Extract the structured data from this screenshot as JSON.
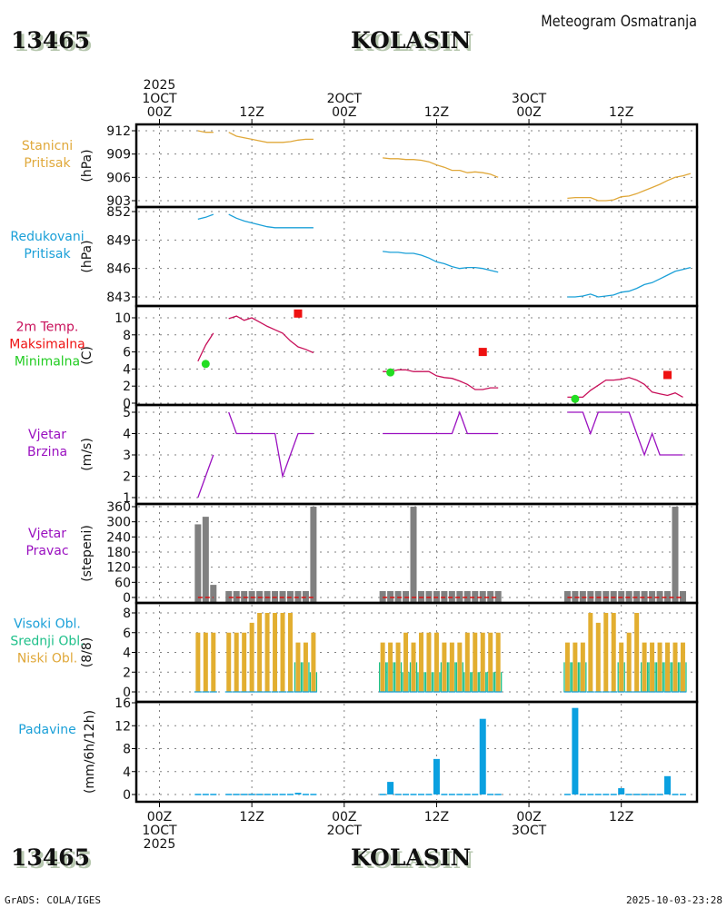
{
  "header": {
    "station_id": "13465",
    "station_name": "KOLASIN",
    "title": "Meteogram Osmatranja"
  },
  "footer": {
    "station_id": "13465",
    "station_name": "KOLASIN",
    "software": "GrADS: COLA/IGES",
    "timestamp": "2025-10-03-23:28"
  },
  "time_axis": {
    "top_labels": [
      {
        "hour": 0,
        "lines": [
          "2025",
          "1OCT",
          "00Z"
        ]
      },
      {
        "hour": 12,
        "lines": [
          "12Z"
        ]
      },
      {
        "hour": 24,
        "lines": [
          "2OCT",
          "00Z"
        ]
      },
      {
        "hour": 36,
        "lines": [
          "12Z"
        ]
      },
      {
        "hour": 48,
        "lines": [
          "3OCT",
          "00Z"
        ]
      },
      {
        "hour": 60,
        "lines": [
          "12Z"
        ]
      }
    ],
    "bottom_labels": [
      {
        "hour": 0,
        "lines": [
          "00Z",
          "1OCT",
          "2025"
        ]
      },
      {
        "hour": 12,
        "lines": [
          "12Z"
        ]
      },
      {
        "hour": 24,
        "lines": [
          "00Z",
          "2OCT"
        ]
      },
      {
        "hour": 36,
        "lines": [
          "12Z"
        ]
      },
      {
        "hour": 48,
        "lines": [
          "00Z",
          "3OCT"
        ]
      },
      {
        "hour": 60,
        "lines": [
          "12Z"
        ]
      }
    ],
    "range_hours": [
      -3,
      70
    ]
  },
  "chart_data": [
    {
      "type": "line",
      "id": "station-pressure",
      "labels": [
        "Stanicni",
        "Pritisak"
      ],
      "label_color": "#e0a83a",
      "ylabel": "(hPa)",
      "ylim": [
        902.5,
        913
      ],
      "yticks": [
        903,
        906,
        909,
        912
      ],
      "color": "#e0a83a",
      "segments": [
        {
          "x": [
            5,
            6,
            7
          ],
          "y": [
            912.0,
            911.8,
            911.8
          ]
        },
        {
          "x": [
            9,
            10,
            11,
            12,
            13,
            14,
            15,
            16,
            17,
            18,
            19,
            20
          ],
          "y": [
            911.8,
            911.3,
            911.1,
            910.9,
            910.7,
            910.5,
            910.5,
            910.5,
            910.6,
            910.8,
            910.9,
            910.9
          ]
        },
        {
          "x": [
            29,
            30,
            31,
            32,
            33,
            34,
            35,
            36,
            37,
            38,
            39,
            40,
            41,
            42,
            43,
            44
          ],
          "y": [
            908.5,
            908.4,
            908.4,
            908.3,
            908.3,
            908.2,
            908.0,
            907.6,
            907.3,
            906.9,
            906.9,
            906.6,
            906.7,
            906.6,
            906.4,
            906.0
          ]
        },
        {
          "x": [
            53,
            54,
            55,
            56,
            57,
            58,
            59,
            60,
            61,
            62,
            63,
            64,
            65,
            66,
            67,
            68,
            69
          ],
          "y": [
            903.3,
            903.4,
            903.4,
            903.4,
            903.0,
            903.0,
            903.1,
            903.5,
            903.6,
            903.9,
            904.3,
            904.7,
            905.1,
            905.6,
            906.0,
            906.2,
            906.5
          ]
        }
      ]
    },
    {
      "type": "line",
      "id": "reduced-pressure",
      "labels": [
        "Redukovani",
        "Pritisak"
      ],
      "label_color": "#1ba0d8",
      "ylabel": "(hPa)",
      "ylim": [
        842.5,
        852.3
      ],
      "yticks": [
        843,
        846,
        849,
        852
      ],
      "color": "#1ba0d8",
      "segments": [
        {
          "x": [
            5,
            6,
            7
          ],
          "y": [
            851.2,
            851.4,
            851.7
          ]
        },
        {
          "x": [
            9,
            10,
            11,
            12,
            13,
            14,
            15,
            16,
            17,
            18,
            19,
            20
          ],
          "y": [
            851.7,
            851.3,
            851.0,
            850.8,
            850.6,
            850.4,
            850.3,
            850.3,
            850.3,
            850.3,
            850.3,
            850.3
          ]
        },
        {
          "x": [
            29,
            30,
            31,
            32,
            33,
            34,
            35,
            36,
            37,
            38,
            39,
            40,
            41,
            42,
            43,
            44
          ],
          "y": [
            847.8,
            847.7,
            847.7,
            847.6,
            847.6,
            847.4,
            847.1,
            846.7,
            846.5,
            846.2,
            846.0,
            846.1,
            846.1,
            846.0,
            845.8,
            845.6
          ]
        },
        {
          "x": [
            53,
            54,
            55,
            56,
            57,
            58,
            59,
            60,
            61,
            62,
            63,
            64,
            65,
            66,
            67,
            68,
            69
          ],
          "y": [
            843.0,
            843.0,
            843.1,
            843.3,
            843.0,
            843.1,
            843.2,
            843.5,
            843.6,
            843.9,
            844.3,
            844.5,
            844.9,
            845.3,
            845.7,
            845.9,
            846.1
          ]
        }
      ]
    },
    {
      "type": "line",
      "id": "temperature",
      "labels": [
        "2m Temp.",
        "Maksimalna",
        "Minimalna"
      ],
      "label_colors": [
        "#c8105a",
        "#ee1111",
        "#22cc22"
      ],
      "ylabel": "(C)",
      "ylim": [
        0,
        10.9
      ],
      "yticks": [
        0,
        2,
        4,
        6,
        8,
        10
      ],
      "color": "#c8105a",
      "segments": [
        {
          "x": [
            5,
            6,
            7
          ],
          "y": [
            4.9,
            6.8,
            8.2
          ]
        },
        {
          "x": [
            9,
            10,
            11,
            12,
            13,
            14,
            15,
            16,
            17,
            18,
            19,
            20
          ],
          "y": [
            9.9,
            10.2,
            9.7,
            10.0,
            9.5,
            9.0,
            8.6,
            8.2,
            7.3,
            6.6,
            6.3,
            5.9
          ]
        },
        {
          "x": [
            29,
            30,
            31,
            32,
            33,
            34,
            35,
            36,
            37,
            38,
            39,
            40,
            41,
            42,
            43,
            44
          ],
          "y": [
            3.7,
            3.7,
            3.9,
            3.9,
            3.7,
            3.7,
            3.7,
            3.2,
            3.0,
            2.9,
            2.6,
            2.2,
            1.6,
            1.6,
            1.8,
            1.8
          ]
        },
        {
          "x": [
            53,
            54,
            55,
            56,
            57,
            58,
            59,
            60,
            61,
            62,
            63,
            64,
            65,
            66,
            67,
            68
          ],
          "y": [
            0.7,
            0.7,
            0.7,
            1.5,
            2.1,
            2.7,
            2.7,
            2.8,
            3.0,
            2.7,
            2.2,
            1.3,
            1.1,
            0.9,
            1.2,
            0.7
          ]
        }
      ],
      "maximum": {
        "color": "#ee1111",
        "points": [
          {
            "x": 18,
            "y": 10.5
          },
          {
            "x": 42,
            "y": 6.0
          },
          {
            "x": 66,
            "y": 3.3
          }
        ]
      },
      "minimum": {
        "color": "#22dd22",
        "points": [
          {
            "x": 6,
            "y": 4.6
          },
          {
            "x": 30,
            "y": 3.6
          },
          {
            "x": 54,
            "y": 0.5
          }
        ]
      }
    },
    {
      "type": "line",
      "id": "wind-speed",
      "labels": [
        "Vjetar",
        "Brzina"
      ],
      "label_color": "#9a10c0",
      "ylabel": "(m/s)",
      "ylim": [
        0.8,
        5.3
      ],
      "yticks": [
        1,
        2,
        3,
        4,
        5
      ],
      "color": "#9a10c0",
      "segments": [
        {
          "x": [
            5,
            6,
            7
          ],
          "y": [
            1,
            2,
            3
          ]
        },
        {
          "x": [
            9,
            10,
            11,
            12,
            13,
            14,
            15,
            16,
            17,
            18,
            19,
            20
          ],
          "y": [
            5,
            4,
            4,
            4,
            4,
            4,
            4,
            2,
            3,
            4,
            4,
            4
          ]
        },
        {
          "x": [
            29,
            30,
            31,
            32,
            33,
            34,
            35,
            36,
            37,
            38,
            39,
            40,
            41,
            42,
            43,
            44
          ],
          "y": [
            4,
            4,
            4,
            4,
            4,
            4,
            4,
            4,
            4,
            4,
            5,
            4,
            4,
            4,
            4,
            4
          ]
        },
        {
          "x": [
            53,
            54,
            55,
            56,
            57,
            58,
            59,
            60,
            61,
            62,
            63,
            64,
            65,
            66,
            67,
            68
          ],
          "y": [
            5,
            5,
            5,
            4,
            5,
            5,
            5,
            5,
            5,
            4,
            3,
            4,
            3,
            3,
            3,
            3
          ]
        }
      ]
    },
    {
      "type": "bar",
      "id": "wind-direction",
      "labels": [
        "Vjetar",
        "Pravac"
      ],
      "label_color": "#9a10c0",
      "ylabel": "(stepeni)",
      "ylim": [
        -8,
        365
      ],
      "yticks": [
        0,
        60,
        120,
        180,
        240,
        300,
        360
      ],
      "color": "#808080",
      "baseline_color": "#dd1111",
      "x": [
        5,
        6,
        7,
        9,
        10,
        11,
        12,
        13,
        14,
        15,
        16,
        17,
        18,
        19,
        20,
        29,
        30,
        31,
        32,
        33,
        34,
        35,
        36,
        37,
        38,
        39,
        40,
        41,
        42,
        43,
        44,
        53,
        54,
        55,
        56,
        57,
        58,
        59,
        60,
        61,
        62,
        63,
        64,
        65,
        66,
        67,
        68
      ],
      "values": [
        290,
        320,
        50,
        20,
        20,
        20,
        20,
        20,
        20,
        20,
        20,
        20,
        20,
        20,
        360,
        20,
        20,
        20,
        20,
        360,
        20,
        20,
        20,
        20,
        20,
        20,
        20,
        20,
        20,
        20,
        20,
        20,
        20,
        20,
        20,
        20,
        20,
        20,
        20,
        20,
        20,
        20,
        20,
        20,
        20,
        360,
        20
      ]
    },
    {
      "type": "bar",
      "id": "cloud-cover",
      "labels": [
        "Visoki Obl.",
        "Srednji Obl.",
        "Niski Obl."
      ],
      "label_colors": [
        "#1ba0d8",
        "#1fc08a",
        "#e0a83a"
      ],
      "ylabel": "(8/8)",
      "ylim": [
        -0.3,
        8.4
      ],
      "yticks": [
        0,
        2,
        4,
        6,
        8
      ],
      "series": [
        {
          "name": "Niski Obl.",
          "color": "#e2ae30",
          "x": [
            5,
            6,
            7,
            9,
            10,
            11,
            12,
            13,
            14,
            15,
            16,
            17,
            18,
            19,
            20,
            29,
            30,
            31,
            32,
            33,
            34,
            35,
            36,
            37,
            38,
            39,
            40,
            41,
            42,
            43,
            44,
            53,
            54,
            55,
            56,
            57,
            58,
            59,
            60,
            61,
            62,
            63,
            64,
            65,
            66,
            67,
            68
          ],
          "values": [
            6,
            6,
            6,
            6,
            6,
            6,
            7,
            8,
            8,
            8,
            8,
            8,
            5,
            5,
            6,
            5,
            5,
            5,
            6,
            5,
            6,
            6,
            6,
            5,
            5,
            5,
            6,
            6,
            6,
            6,
            6,
            5,
            5,
            5,
            8,
            7,
            8,
            8,
            5,
            6,
            8,
            5,
            5,
            5,
            5,
            5,
            5
          ]
        },
        {
          "name": "Srednji Obl.",
          "color": "#1fc08a",
          "x": [
            5,
            6,
            7,
            9,
            10,
            11,
            12,
            13,
            14,
            15,
            16,
            17,
            18,
            19,
            20,
            29,
            30,
            31,
            32,
            33,
            34,
            35,
            36,
            37,
            38,
            39,
            40,
            41,
            42,
            43,
            44,
            53,
            54,
            55,
            56,
            57,
            58,
            59,
            60,
            61,
            62,
            63,
            64,
            65,
            66,
            67,
            68
          ],
          "values": [
            0,
            0,
            0,
            0,
            0,
            0,
            0,
            0,
            0,
            0,
            0,
            0,
            3,
            3,
            2,
            3,
            3,
            3,
            2,
            3,
            2,
            2,
            2,
            3,
            3,
            3,
            2,
            2,
            2,
            2,
            2,
            3,
            3,
            3,
            0,
            0,
            0,
            0,
            3,
            0,
            0,
            3,
            3,
            3,
            3,
            3,
            3
          ]
        },
        {
          "name": "Visoki Obl.",
          "color": "#1ba0d8",
          "x": [
            5,
            6,
            7,
            9,
            10,
            11,
            12,
            13,
            14,
            15,
            16,
            17,
            18,
            19,
            20,
            29,
            30,
            31,
            32,
            33,
            34,
            35,
            36,
            37,
            38,
            39,
            40,
            41,
            42,
            43,
            44,
            53,
            54,
            55,
            56,
            57,
            58,
            59,
            60,
            61,
            62,
            63,
            64,
            65,
            66,
            67,
            68
          ],
          "values": [
            0,
            0,
            0,
            0,
            0,
            0,
            0,
            0,
            0,
            0,
            0,
            0,
            0,
            0,
            0,
            0,
            0,
            0,
            0,
            0,
            0,
            0,
            0,
            0,
            0,
            0,
            0,
            0,
            0,
            0,
            0,
            0,
            0,
            0,
            0,
            0,
            0,
            0,
            0,
            0,
            0,
            0,
            0,
            0,
            0,
            0,
            0
          ]
        }
      ]
    },
    {
      "type": "bar",
      "id": "precipitation",
      "labels": [
        "Padavine"
      ],
      "label_color": "#1ba0d8",
      "ylabel": "(mm/6h/12h)",
      "ylim": [
        -0.5,
        16.2
      ],
      "yticks": [
        0,
        4,
        8,
        12,
        16
      ],
      "color": "#0aa0e0",
      "x": [
        5,
        6,
        7,
        9,
        10,
        11,
        12,
        13,
        14,
        15,
        16,
        17,
        18,
        19,
        20,
        29,
        30,
        31,
        32,
        33,
        34,
        35,
        36,
        37,
        38,
        39,
        40,
        41,
        42,
        43,
        44,
        53,
        54,
        55,
        56,
        57,
        58,
        59,
        60,
        61,
        62,
        63,
        64,
        65,
        66,
        67,
        68
      ],
      "values": [
        0,
        0,
        0,
        0,
        0,
        0,
        0,
        0,
        0,
        0,
        0,
        0,
        0.3,
        0,
        0,
        0,
        2.2,
        0,
        0,
        0,
        0,
        0,
        6.2,
        0,
        0,
        0,
        0,
        0,
        13.2,
        0,
        0,
        0,
        15.1,
        0,
        0,
        0,
        0,
        0,
        1.1,
        0,
        0,
        0,
        0,
        0,
        3.2,
        0,
        0
      ]
    }
  ]
}
